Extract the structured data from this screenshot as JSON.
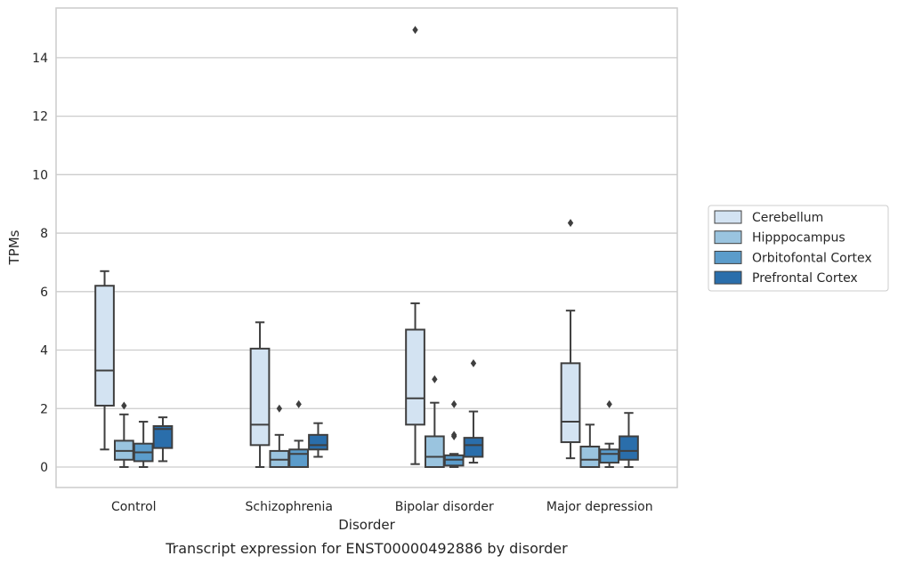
{
  "caption": "Transcript expression for ENST00000492886 by disorder",
  "chart_data": {
    "type": "box",
    "xlabel": "Disorder",
    "ylabel": "TPMs",
    "ylim": [
      -0.7,
      15.7
    ],
    "yticks": [
      0,
      2,
      4,
      6,
      8,
      10,
      12,
      14
    ],
    "grid": "horizontal",
    "legend_position": "right",
    "categories": [
      "Control",
      "Schizophrenia",
      "Bipolar disorder",
      "Major depression"
    ],
    "series": [
      {
        "name": "Cerebellum",
        "color": "#d3e3f2",
        "boxes": [
          {
            "whislo": 0.6,
            "q1": 2.1,
            "med": 3.3,
            "q3": 6.2,
            "whishi": 6.7,
            "fliers": []
          },
          {
            "whislo": 0.0,
            "q1": 0.75,
            "med": 1.45,
            "q3": 4.05,
            "whishi": 4.95,
            "fliers": []
          },
          {
            "whislo": 0.1,
            "q1": 1.45,
            "med": 2.35,
            "q3": 4.7,
            "whishi": 5.6,
            "fliers": [
              14.95
            ]
          },
          {
            "whislo": 0.3,
            "q1": 0.85,
            "med": 1.55,
            "q3": 3.55,
            "whishi": 5.35,
            "fliers": [
              8.35
            ]
          }
        ]
      },
      {
        "name": "Hipppocampus",
        "color": "#9ac4df",
        "boxes": [
          {
            "whislo": 0.0,
            "q1": 0.25,
            "med": 0.55,
            "q3": 0.9,
            "whishi": 1.8,
            "fliers": [
              2.1
            ]
          },
          {
            "whislo": 0.0,
            "q1": 0.0,
            "med": 0.25,
            "q3": 0.55,
            "whishi": 1.1,
            "fliers": [
              2.0
            ]
          },
          {
            "whislo": 0.0,
            "q1": 0.0,
            "med": 0.35,
            "q3": 1.05,
            "whishi": 2.2,
            "fliers": [
              3.0
            ]
          },
          {
            "whislo": 0.0,
            "q1": 0.0,
            "med": 0.25,
            "q3": 0.7,
            "whishi": 1.45,
            "fliers": []
          }
        ]
      },
      {
        "name": "Orbitofontal Cortex",
        "color": "#5b9ccb",
        "boxes": [
          {
            "whislo": 0.0,
            "q1": 0.2,
            "med": 0.5,
            "q3": 0.8,
            "whishi": 1.55,
            "fliers": []
          },
          {
            "whislo": 0.0,
            "q1": 0.0,
            "med": 0.45,
            "q3": 0.6,
            "whishi": 0.9,
            "fliers": [
              2.15
            ]
          },
          {
            "whislo": 0.0,
            "q1": 0.05,
            "med": 0.25,
            "q3": 0.4,
            "whishi": 0.45,
            "fliers": [
              1.05,
              1.1,
              2.15
            ]
          },
          {
            "whislo": 0.0,
            "q1": 0.15,
            "med": 0.45,
            "q3": 0.6,
            "whishi": 0.8,
            "fliers": [
              2.15
            ]
          }
        ]
      },
      {
        "name": "Prefrontal Cortex",
        "color": "#2a6eab",
        "boxes": [
          {
            "whislo": 0.2,
            "q1": 0.65,
            "med": 1.3,
            "q3": 1.4,
            "whishi": 1.7,
            "fliers": []
          },
          {
            "whislo": 0.35,
            "q1": 0.6,
            "med": 0.75,
            "q3": 1.1,
            "whishi": 1.5,
            "fliers": []
          },
          {
            "whislo": 0.15,
            "q1": 0.35,
            "med": 0.75,
            "q3": 1.0,
            "whishi": 1.9,
            "fliers": [
              3.55
            ]
          },
          {
            "whislo": 0.0,
            "q1": 0.25,
            "med": 0.55,
            "q3": 1.05,
            "whishi": 1.85,
            "fliers": []
          }
        ]
      }
    ]
  }
}
